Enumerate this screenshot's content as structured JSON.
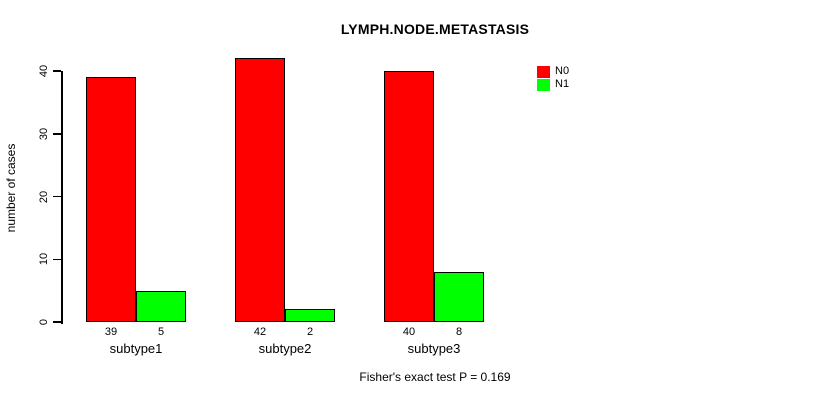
{
  "chart_data": {
    "type": "bar",
    "title": "LYMPH.NODE.METASTASIS",
    "ylabel": "number of cases",
    "xlabel": "",
    "footnote": "Fisher's exact test P = 0.169",
    "categories": [
      "subtype1",
      "subtype2",
      "subtype3"
    ],
    "series": [
      {
        "name": "N0",
        "color": "#FF0000",
        "values": [
          39,
          42,
          40
        ]
      },
      {
        "name": "N1",
        "color": "#00FF00",
        "values": [
          5,
          2,
          8
        ]
      }
    ],
    "yticks": [
      0,
      10,
      20,
      30,
      40
    ],
    "ylim": [
      0,
      42
    ],
    "grid": false,
    "legend_position": "top-right",
    "value_labels_under_bars": true,
    "colors": {
      "axis": "#000000",
      "bar_border": "#000000",
      "background": "#FFFFFF"
    }
  }
}
